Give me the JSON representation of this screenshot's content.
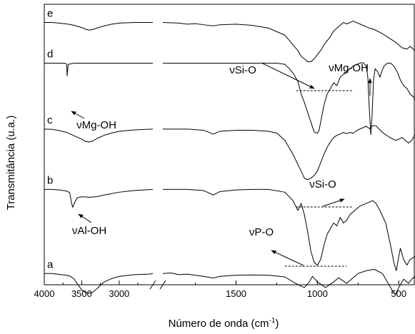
{
  "chart_data": {
    "type": "line",
    "xlabel": "Número de onda (cm",
    "xlabel_sup": "-1",
    "xlabel_close": ")",
    "ylabel": "Transmitância (u.a.)",
    "x_axis": {
      "direction": "decreasing",
      "broken": true,
      "segments": [
        {
          "from": 4000,
          "to": 2550
        },
        {
          "from": 1950,
          "to": 400
        }
      ],
      "break_marker": "//"
    },
    "xticks": [
      {
        "value": 4000,
        "label": "4000",
        "segment": 0
      },
      {
        "value": 3500,
        "label": "3500",
        "segment": 0
      },
      {
        "value": 3000,
        "label": "3000",
        "segment": 0
      },
      {
        "value": 1500,
        "label": "1500",
        "segment": 1
      },
      {
        "value": 1000,
        "label": "1000",
        "segment": 1
      },
      {
        "value": 500,
        "label": "500",
        "segment": 1
      }
    ],
    "series": [
      {
        "name": "a",
        "offset": 0.04,
        "points": [
          [
            4000,
            0.0
          ],
          [
            3900,
            0.0
          ],
          [
            3800,
            -0.003
          ],
          [
            3700,
            -0.006
          ],
          [
            3650,
            -0.01
          ],
          [
            3600,
            -0.02
          ],
          [
            3550,
            -0.04
          ],
          [
            3500,
            -0.058
          ],
          [
            3450,
            -0.068
          ],
          [
            3400,
            -0.07
          ],
          [
            3350,
            -0.066
          ],
          [
            3300,
            -0.055
          ],
          [
            3250,
            -0.042
          ],
          [
            3200,
            -0.03
          ],
          [
            3100,
            -0.018
          ],
          [
            3000,
            -0.01
          ],
          [
            2800,
            -0.004
          ],
          [
            2600,
            -0.002
          ],
          [
            2550,
            0.0
          ],
          [
            1950,
            0.0
          ],
          [
            1900,
            0.002
          ],
          [
            1850,
            -0.004
          ],
          [
            1800,
            -0.002
          ],
          [
            1700,
            -0.01
          ],
          [
            1640,
            -0.016
          ],
          [
            1600,
            -0.01
          ],
          [
            1500,
            -0.006
          ],
          [
            1400,
            -0.005
          ],
          [
            1300,
            -0.006
          ],
          [
            1200,
            -0.012
          ],
          [
            1150,
            -0.03
          ],
          [
            1100,
            -0.045
          ],
          [
            1080,
            -0.05
          ],
          [
            1050,
            -0.03
          ],
          [
            1030,
            -0.01
          ],
          [
            1000,
            -0.03
          ],
          [
            950,
            -0.05
          ],
          [
            900,
            -0.03
          ],
          [
            870,
            -0.015
          ],
          [
            820,
            -0.035
          ],
          [
            780,
            -0.015
          ],
          [
            750,
            0.0
          ],
          [
            700,
            0.01
          ],
          [
            650,
            0.015
          ],
          [
            600,
            0.0
          ],
          [
            570,
            -0.03
          ],
          [
            540,
            -0.06
          ],
          [
            520,
            -0.075
          ],
          [
            500,
            -0.05
          ],
          [
            470,
            -0.02
          ],
          [
            440,
            -0.035
          ],
          [
            420,
            -0.02
          ],
          [
            400,
            -0.01
          ]
        ]
      },
      {
        "name": "b",
        "offset": 0.34,
        "points": [
          [
            4000,
            0.0
          ],
          [
            3900,
            0.0
          ],
          [
            3800,
            -0.002
          ],
          [
            3700,
            -0.006
          ],
          [
            3660,
            -0.012
          ],
          [
            3635,
            -0.05
          ],
          [
            3620,
            -0.064
          ],
          [
            3600,
            -0.05
          ],
          [
            3560,
            -0.03
          ],
          [
            3500,
            -0.026
          ],
          [
            3400,
            -0.028
          ],
          [
            3300,
            -0.026
          ],
          [
            3200,
            -0.02
          ],
          [
            3000,
            -0.01
          ],
          [
            2800,
            -0.004
          ],
          [
            2550,
            0.0
          ],
          [
            1950,
            0.0
          ],
          [
            1800,
            0.0
          ],
          [
            1700,
            -0.004
          ],
          [
            1640,
            -0.02
          ],
          [
            1600,
            -0.008
          ],
          [
            1500,
            -0.002
          ],
          [
            1400,
            0.0
          ],
          [
            1300,
            0.0
          ],
          [
            1200,
            -0.01
          ],
          [
            1150,
            -0.04
          ],
          [
            1120,
            -0.075
          ],
          [
            1100,
            -0.05
          ],
          [
            1080,
            -0.09
          ],
          [
            1060,
            -0.15
          ],
          [
            1040,
            -0.22
          ],
          [
            1020,
            -0.26
          ],
          [
            1000,
            -0.27
          ],
          [
            980,
            -0.25
          ],
          [
            960,
            -0.2
          ],
          [
            940,
            -0.16
          ],
          [
            920,
            -0.14
          ],
          [
            900,
            -0.12
          ],
          [
            880,
            -0.13
          ],
          [
            860,
            -0.1
          ],
          [
            840,
            -0.12
          ],
          [
            820,
            -0.11
          ],
          [
            800,
            -0.09
          ],
          [
            780,
            -0.08
          ],
          [
            760,
            -0.07
          ],
          [
            740,
            -0.06
          ],
          [
            700,
            -0.05
          ],
          [
            660,
            -0.04
          ],
          [
            640,
            -0.05
          ],
          [
            620,
            -0.07
          ],
          [
            580,
            -0.12
          ],
          [
            550,
            -0.2
          ],
          [
            530,
            -0.26
          ],
          [
            515,
            -0.29
          ],
          [
            500,
            -0.24
          ],
          [
            490,
            -0.21
          ],
          [
            470,
            -0.25
          ],
          [
            450,
            -0.27
          ],
          [
            430,
            -0.25
          ],
          [
            400,
            -0.24
          ]
        ]
      },
      {
        "name": "c",
        "offset": 0.555,
        "points": [
          [
            4000,
            0.0
          ],
          [
            3900,
            -0.001
          ],
          [
            3800,
            -0.005
          ],
          [
            3700,
            -0.012
          ],
          [
            3600,
            -0.024
          ],
          [
            3500,
            -0.036
          ],
          [
            3450,
            -0.044
          ],
          [
            3400,
            -0.046
          ],
          [
            3350,
            -0.042
          ],
          [
            3300,
            -0.034
          ],
          [
            3200,
            -0.022
          ],
          [
            3100,
            -0.014
          ],
          [
            3000,
            -0.008
          ],
          [
            2800,
            -0.003
          ],
          [
            2550,
            0.0
          ],
          [
            1950,
            0.0
          ],
          [
            1800,
            0.0
          ],
          [
            1700,
            -0.004
          ],
          [
            1640,
            -0.018
          ],
          [
            1600,
            -0.008
          ],
          [
            1500,
            -0.004
          ],
          [
            1400,
            -0.004
          ],
          [
            1300,
            -0.008
          ],
          [
            1250,
            -0.014
          ],
          [
            1200,
            -0.04
          ],
          [
            1150,
            -0.09
          ],
          [
            1100,
            -0.15
          ],
          [
            1080,
            -0.175
          ],
          [
            1060,
            -0.18
          ],
          [
            1040,
            -0.175
          ],
          [
            1020,
            -0.165
          ],
          [
            1000,
            -0.15
          ],
          [
            980,
            -0.12
          ],
          [
            960,
            -0.09
          ],
          [
            940,
            -0.065
          ],
          [
            920,
            -0.045
          ],
          [
            900,
            -0.03
          ],
          [
            880,
            -0.022
          ],
          [
            860,
            -0.018
          ],
          [
            840,
            -0.012
          ],
          [
            820,
            -0.016
          ],
          [
            800,
            -0.012
          ],
          [
            780,
            -0.015
          ],
          [
            760,
            -0.006
          ],
          [
            740,
            0.0
          ],
          [
            700,
            0.01
          ],
          [
            680,
            0.002
          ],
          [
            660,
            0.012
          ],
          [
            640,
            0.012
          ],
          [
            620,
            0.0
          ],
          [
            600,
            -0.012
          ],
          [
            560,
            -0.028
          ],
          [
            520,
            -0.04
          ],
          [
            500,
            -0.036
          ],
          [
            480,
            -0.03
          ],
          [
            460,
            -0.04
          ],
          [
            440,
            -0.05
          ],
          [
            420,
            -0.04
          ],
          [
            400,
            -0.02
          ]
        ]
      },
      {
        "name": "d",
        "offset": 0.79,
        "points": [
          [
            4000,
            0.0
          ],
          [
            3900,
            0.0
          ],
          [
            3800,
            0.0
          ],
          [
            3720,
            0.0
          ],
          [
            3700,
            -0.004
          ],
          [
            3695,
            -0.045
          ],
          [
            3688,
            -0.025
          ],
          [
            3680,
            -0.004
          ],
          [
            3600,
            0.0
          ],
          [
            3400,
            0.0
          ],
          [
            3000,
            0.0
          ],
          [
            2550,
            0.0
          ],
          [
            1950,
            0.0
          ],
          [
            1800,
            0.0
          ],
          [
            1600,
            0.0
          ],
          [
            1400,
            0.0
          ],
          [
            1250,
            0.0
          ],
          [
            1200,
            -0.004
          ],
          [
            1180,
            -0.015
          ],
          [
            1150,
            -0.035
          ],
          [
            1120,
            -0.065
          ],
          [
            1100,
            -0.11
          ],
          [
            1080,
            -0.14
          ],
          [
            1060,
            -0.175
          ],
          [
            1040,
            -0.21
          ],
          [
            1020,
            -0.245
          ],
          [
            1000,
            -0.25
          ],
          [
            990,
            -0.24
          ],
          [
            960,
            -0.15
          ],
          [
            940,
            -0.11
          ],
          [
            920,
            -0.09
          ],
          [
            900,
            -0.07
          ],
          [
            880,
            -0.08
          ],
          [
            860,
            -0.05
          ],
          [
            840,
            -0.04
          ],
          [
            820,
            -0.03
          ],
          [
            800,
            -0.02
          ],
          [
            780,
            -0.01
          ],
          [
            760,
            -0.005
          ],
          [
            740,
            0.0
          ],
          [
            720,
            0.002
          ],
          [
            700,
            -0.01
          ],
          [
            690,
            -0.05
          ],
          [
            682,
            -0.15
          ],
          [
            672,
            -0.255
          ],
          [
            664,
            -0.19
          ],
          [
            655,
            -0.06
          ],
          [
            645,
            -0.02
          ],
          [
            630,
            -0.03
          ],
          [
            615,
            -0.05
          ],
          [
            605,
            -0.03
          ],
          [
            590,
            -0.01
          ],
          [
            570,
            0.0
          ],
          [
            550,
            0.0
          ],
          [
            530,
            -0.01
          ],
          [
            510,
            -0.03
          ],
          [
            490,
            -0.06
          ],
          [
            470,
            -0.08
          ],
          [
            450,
            -0.09
          ],
          [
            430,
            -0.11
          ],
          [
            410,
            -0.12
          ],
          [
            400,
            -0.13
          ]
        ]
      },
      {
        "name": "e",
        "offset": 0.935,
        "points": [
          [
            4000,
            0.0
          ],
          [
            3900,
            0.0
          ],
          [
            3800,
            -0.002
          ],
          [
            3700,
            -0.005
          ],
          [
            3600,
            -0.01
          ],
          [
            3500,
            -0.018
          ],
          [
            3450,
            -0.024
          ],
          [
            3400,
            -0.027
          ],
          [
            3350,
            -0.025
          ],
          [
            3300,
            -0.02
          ],
          [
            3200,
            -0.012
          ],
          [
            3100,
            -0.006
          ],
          [
            3000,
            -0.002
          ],
          [
            2800,
            0.0
          ],
          [
            2550,
            0.0
          ],
          [
            1950,
            0.0
          ],
          [
            1850,
            -0.002
          ],
          [
            1800,
            -0.006
          ],
          [
            1750,
            -0.004
          ],
          [
            1700,
            -0.008
          ],
          [
            1640,
            -0.012
          ],
          [
            1600,
            -0.008
          ],
          [
            1500,
            -0.006
          ],
          [
            1400,
            -0.01
          ],
          [
            1300,
            -0.02
          ],
          [
            1200,
            -0.045
          ],
          [
            1150,
            -0.08
          ],
          [
            1120,
            -0.1
          ],
          [
            1100,
            -0.12
          ],
          [
            1080,
            -0.13
          ],
          [
            1060,
            -0.14
          ],
          [
            1040,
            -0.14
          ],
          [
            1020,
            -0.13
          ],
          [
            1000,
            -0.115
          ],
          [
            980,
            -0.1
          ],
          [
            960,
            -0.08
          ],
          [
            940,
            -0.065
          ],
          [
            920,
            -0.05
          ],
          [
            900,
            -0.03
          ],
          [
            880,
            -0.02
          ],
          [
            860,
            -0.01
          ],
          [
            840,
            0.0
          ],
          [
            820,
            -0.005
          ],
          [
            800,
            0.0
          ],
          [
            780,
            0.005
          ],
          [
            760,
            0.0
          ],
          [
            740,
            -0.005
          ],
          [
            720,
            -0.01
          ],
          [
            700,
            -0.015
          ],
          [
            680,
            -0.02
          ],
          [
            650,
            -0.025
          ],
          [
            600,
            -0.04
          ],
          [
            560,
            -0.055
          ],
          [
            520,
            -0.07
          ],
          [
            500,
            -0.08
          ],
          [
            480,
            -0.09
          ],
          [
            450,
            -0.095
          ],
          [
            430,
            -0.085
          ],
          [
            410,
            -0.095
          ],
          [
            400,
            -0.1
          ]
        ]
      }
    ],
    "annotations": [
      {
        "text": "νSi-O",
        "series": "e",
        "bracket_from": 1130,
        "bracket_to": 780
      },
      {
        "text": "νMg-OH",
        "series": "d",
        "points_to": 672
      },
      {
        "text": "νMg-OH",
        "series": "d",
        "points_to": 3695
      },
      {
        "text": "νSi-O",
        "series": "b",
        "bracket_from": 1130,
        "bracket_to": 780
      },
      {
        "text": "νAl-OH",
        "series": "b",
        "points_to": 3620
      },
      {
        "text": "νP-O",
        "series": "a",
        "bracket_from": 1200,
        "bracket_to": 820
      }
    ]
  }
}
